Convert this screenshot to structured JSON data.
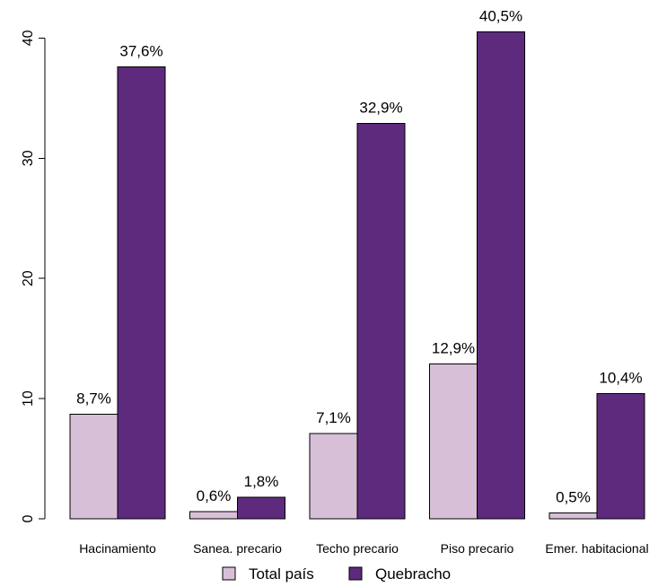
{
  "chart_data": {
    "type": "bar",
    "categories": [
      "Hacinamiento",
      "Sanea. precario",
      "Techo precario",
      "Piso precario",
      "Emer. habitacional"
    ],
    "series": [
      {
        "name": "Total país",
        "values": [
          8.7,
          0.6,
          7.1,
          12.9,
          0.5
        ],
        "labels": [
          "8,7%",
          "0,6%",
          "7,1%",
          "12,9%",
          "0,5%"
        ],
        "color": "#d8bfd8"
      },
      {
        "name": "Quebracho",
        "values": [
          37.6,
          1.8,
          32.9,
          40.5,
          10.4
        ],
        "labels": [
          "37,6%",
          "1,8%",
          "32,9%",
          "40,5%",
          "10,4%"
        ],
        "color": "#5e2a7e"
      }
    ],
    "yticks": [
      0,
      10,
      20,
      30,
      40
    ],
    "ytick_labels": [
      "0",
      "10",
      "20",
      "30",
      "40"
    ],
    "ylim": [
      0,
      42
    ],
    "title": "",
    "xlabel": "",
    "ylabel": "",
    "legend_position": "bottom"
  }
}
